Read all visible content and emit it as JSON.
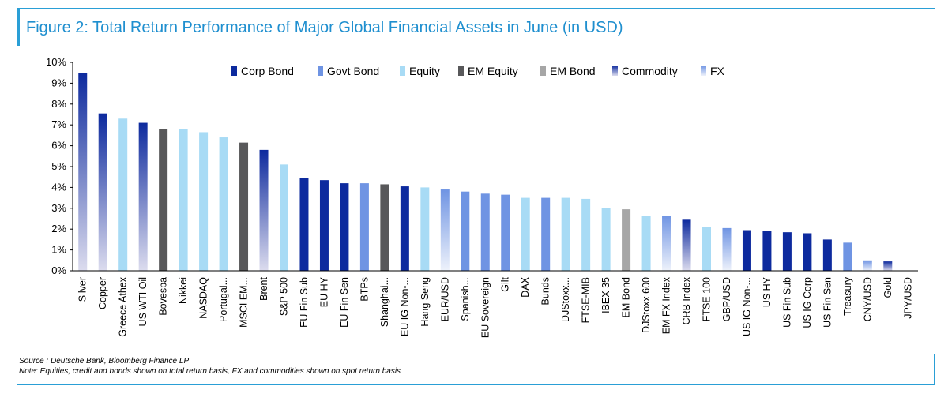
{
  "title": "Figure 2: Total Return Performance of Major Global Financial Assets in June (in USD)",
  "source": "Source : Deutsche Bank, Bloomberg Finance LP",
  "note": "Note: Equities, credit and bonds shown on total return basis, FX and commodities shown on spot return basis",
  "colors": {
    "corp_bond": "#0d2a9e",
    "govt_bond": "#6f94e3",
    "equity": "#a8dbf5",
    "em_equity": "#58585a",
    "em_bond": "#a6a6a6",
    "commodity_top": "#0d2a9e",
    "commodity_bottom": "#dcdcee",
    "fx_top": "#6f94e3",
    "fx_bottom": "#eef2fb",
    "accent": "#1f8fcf",
    "axis": "#000000"
  },
  "chart_data": {
    "type": "bar",
    "ylim": [
      0,
      10
    ],
    "yticks": [
      "0%",
      "1%",
      "2%",
      "3%",
      "4%",
      "5%",
      "6%",
      "7%",
      "8%",
      "9%",
      "10%"
    ],
    "legend_position": "top",
    "legend": [
      {
        "key": "corp",
        "label": "Corp Bond"
      },
      {
        "key": "govt",
        "label": "Govt Bond"
      },
      {
        "key": "equity",
        "label": "Equity"
      },
      {
        "key": "emeq",
        "label": "EM Equity"
      },
      {
        "key": "embond",
        "label": "EM Bond"
      },
      {
        "key": "commodity",
        "label": "Commodity"
      },
      {
        "key": "fx",
        "label": "FX"
      }
    ],
    "categories": [
      "Silver",
      "Copper",
      "Greece Athex",
      "US WTI Oil",
      "Bovespa",
      "Nikkei",
      "NASDAQ",
      "Portugal...",
      "MSCI EM...",
      "Brent",
      "S&P 500",
      "EU Fin Sub",
      "EU HY",
      "EU Fin Sen",
      "BTPs",
      "Shanghai...",
      "EU IG Non-...",
      "Hang Seng",
      "EUR/USD",
      "Spanish...",
      "EU Sovereign",
      "Gilt",
      "DAX",
      "Bunds",
      "DJStoxx...",
      "FTSE-MIB",
      "IBEX 35",
      "EM Bond",
      "DJStoxx 600",
      "EM FX Index",
      "CRB Index",
      "FTSE 100",
      "GBP/USD",
      "US IG Non-...",
      "US HY",
      "US Fin Sub",
      "US IG Corp",
      "US Fin Sen",
      "Treasury",
      "CNY/USD",
      "Gold",
      "JPY/USD"
    ],
    "values": [
      9.5,
      7.55,
      7.3,
      7.1,
      6.8,
      6.8,
      6.65,
      6.4,
      6.15,
      5.8,
      5.1,
      4.45,
      4.35,
      4.2,
      4.2,
      4.15,
      4.05,
      4.0,
      3.9,
      3.8,
      3.7,
      3.65,
      3.5,
      3.5,
      3.5,
      3.45,
      3.0,
      2.95,
      2.65,
      2.65,
      2.45,
      2.1,
      2.05,
      1.95,
      1.9,
      1.85,
      1.8,
      1.5,
      1.35,
      0.5,
      0.45,
      0.0
    ],
    "asset_class": [
      "commodity",
      "commodity",
      "equity",
      "commodity",
      "emeq",
      "equity",
      "equity",
      "equity",
      "emeq",
      "commodity",
      "equity",
      "corp",
      "corp",
      "corp",
      "govt",
      "emeq",
      "corp",
      "equity",
      "fx",
      "govt",
      "govt",
      "govt",
      "equity",
      "govt",
      "equity",
      "equity",
      "equity",
      "embond",
      "equity",
      "fx",
      "commodity",
      "equity",
      "fx",
      "corp",
      "corp",
      "corp",
      "corp",
      "corp",
      "govt",
      "fx",
      "commodity",
      "fx"
    ]
  }
}
